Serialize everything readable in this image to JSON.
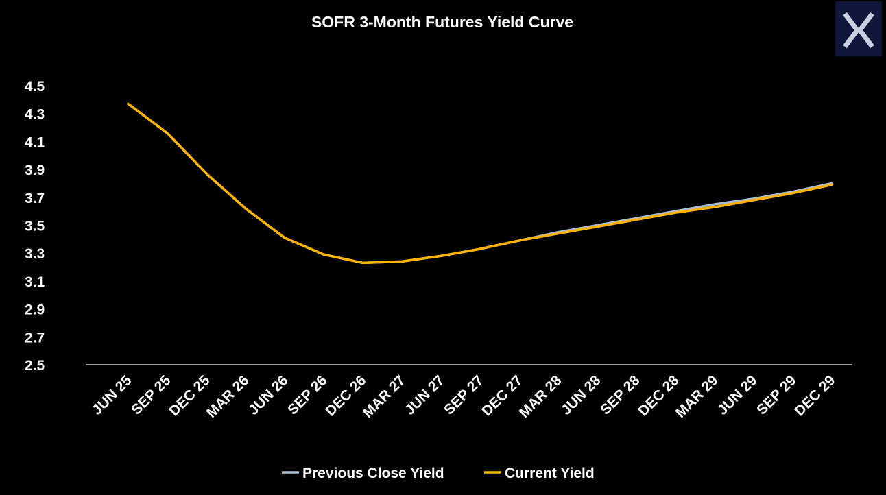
{
  "chart_data": {
    "type": "line",
    "title": "SOFR 3-Month Futures Yield Curve",
    "xlabel": "",
    "ylabel": "",
    "categories": [
      "JUN 25",
      "SEP 25",
      "DEC 25",
      "MAR 26",
      "JUN 26",
      "SEP 26",
      "DEC 26",
      "MAR 27",
      "JUN 27",
      "SEP 27",
      "DEC 27",
      "MAR 28",
      "JUN 28",
      "SEP 28",
      "DEC 28",
      "MAR 29",
      "JUN 29",
      "SEP 29",
      "DEC 29"
    ],
    "ylim": [
      2.5,
      4.5
    ],
    "yticks": [
      "2.5",
      "2.7",
      "2.9",
      "3.1",
      "3.3",
      "3.5",
      "3.7",
      "3.9",
      "4.1",
      "4.3",
      "4.5"
    ],
    "grid": false,
    "legend_position": "bottom",
    "series": [
      {
        "name": "Previous Close Yield",
        "color": "#a9bcd0",
        "values": [
          4.37,
          4.16,
          3.87,
          3.62,
          3.41,
          3.29,
          3.23,
          3.24,
          3.28,
          3.33,
          3.39,
          3.45,
          3.5,
          3.55,
          3.6,
          3.65,
          3.69,
          3.74,
          3.8
        ]
      },
      {
        "name": "Current Yield",
        "color": "#ffb300",
        "values": [
          4.37,
          4.16,
          3.87,
          3.62,
          3.41,
          3.29,
          3.23,
          3.24,
          3.28,
          3.33,
          3.39,
          3.44,
          3.49,
          3.54,
          3.59,
          3.63,
          3.68,
          3.73,
          3.79
        ]
      }
    ]
  },
  "logo": {
    "name": "x-logo-icon",
    "background": "#10163a",
    "color": "#c9cfe0"
  }
}
